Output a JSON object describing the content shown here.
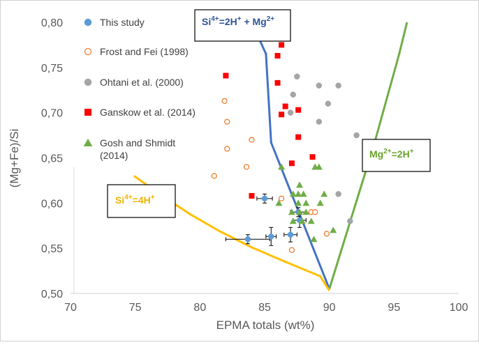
{
  "chart_data": {
    "type": "scatter",
    "xlabel": "EPMA totals (wt%)",
    "ylabel": "(Mg+Fe)/Si",
    "xlim": [
      70,
      100
    ],
    "ylim": [
      0.5,
      0.8
    ],
    "x_ticks": [
      "70",
      "75",
      "80",
      "85",
      "90",
      "95",
      "100"
    ],
    "y_ticks": [
      "0,50",
      "0,55",
      "0,60",
      "0,65",
      "0,70",
      "0,75",
      "0,80"
    ],
    "series": [
      {
        "name": "This study",
        "color": "#5b9bd5",
        "marker": "circle-filled",
        "points": [
          {
            "x": 83.7,
            "y": 0.56,
            "xerr": 1.7,
            "yerr": 0.005
          },
          {
            "x": 85.5,
            "y": 0.563,
            "xerr": 0.4,
            "yerr": 0.01
          },
          {
            "x": 87.0,
            "y": 0.565,
            "xerr": 0.5,
            "yerr": 0.008
          },
          {
            "x": 85.0,
            "y": 0.605,
            "xerr": 0.6,
            "yerr": 0.005
          },
          {
            "x": 87.6,
            "y": 0.59,
            "xerr": 0.6,
            "yerr": 0.005
          },
          {
            "x": 87.7,
            "y": 0.581,
            "xerr": 0.5,
            "yerr": 0.008
          }
        ]
      },
      {
        "name": "Frost and Fei (1998)",
        "color": "#ed7d31",
        "marker": "circle-open",
        "points": [
          {
            "x": 81.9,
            "y": 0.713
          },
          {
            "x": 82.1,
            "y": 0.69
          },
          {
            "x": 82.1,
            "y": 0.66
          },
          {
            "x": 84.0,
            "y": 0.67
          },
          {
            "x": 83.6,
            "y": 0.64
          },
          {
            "x": 81.1,
            "y": 0.63
          },
          {
            "x": 86.3,
            "y": 0.605
          },
          {
            "x": 88.6,
            "y": 0.59
          },
          {
            "x": 88.9,
            "y": 0.59
          },
          {
            "x": 87.1,
            "y": 0.548
          },
          {
            "x": 89.8,
            "y": 0.566
          }
        ]
      },
      {
        "name": "Ohtani et al. (2000)",
        "color": "#a5a5a5",
        "marker": "circle-filled",
        "points": [
          {
            "x": 87.5,
            "y": 0.74
          },
          {
            "x": 89.2,
            "y": 0.73
          },
          {
            "x": 90.7,
            "y": 0.73
          },
          {
            "x": 87.2,
            "y": 0.72
          },
          {
            "x": 89.9,
            "y": 0.71
          },
          {
            "x": 87.0,
            "y": 0.7
          },
          {
            "x": 89.2,
            "y": 0.69
          },
          {
            "x": 92.1,
            "y": 0.675
          },
          {
            "x": 90.7,
            "y": 0.61
          },
          {
            "x": 91.6,
            "y": 0.58
          }
        ]
      },
      {
        "name": "Ganskow et al. (2014)",
        "color": "#ff0000",
        "marker": "square",
        "points": [
          {
            "x": 86.3,
            "y": 0.775
          },
          {
            "x": 86.0,
            "y": 0.763
          },
          {
            "x": 82.0,
            "y": 0.741
          },
          {
            "x": 86.0,
            "y": 0.733
          },
          {
            "x": 86.6,
            "y": 0.707
          },
          {
            "x": 87.6,
            "y": 0.703
          },
          {
            "x": 86.3,
            "y": 0.698
          },
          {
            "x": 87.6,
            "y": 0.673
          },
          {
            "x": 88.7,
            "y": 0.651
          },
          {
            "x": 87.1,
            "y": 0.644
          },
          {
            "x": 84.0,
            "y": 0.608
          }
        ]
      },
      {
        "name": "Gosh and Shmidt (2014)",
        "color": "#70ad47",
        "marker": "triangle",
        "points": [
          {
            "x": 86.3,
            "y": 0.64
          },
          {
            "x": 88.9,
            "y": 0.64
          },
          {
            "x": 89.2,
            "y": 0.64
          },
          {
            "x": 87.7,
            "y": 0.62
          },
          {
            "x": 87.2,
            "y": 0.61
          },
          {
            "x": 87.6,
            "y": 0.61
          },
          {
            "x": 88.0,
            "y": 0.61
          },
          {
            "x": 89.6,
            "y": 0.61
          },
          {
            "x": 86.1,
            "y": 0.6
          },
          {
            "x": 87.6,
            "y": 0.6
          },
          {
            "x": 88.2,
            "y": 0.6
          },
          {
            "x": 89.3,
            "y": 0.6
          },
          {
            "x": 87.1,
            "y": 0.59
          },
          {
            "x": 87.7,
            "y": 0.59
          },
          {
            "x": 88.2,
            "y": 0.59
          },
          {
            "x": 87.2,
            "y": 0.58
          },
          {
            "x": 87.9,
            "y": 0.58
          },
          {
            "x": 88.6,
            "y": 0.58
          },
          {
            "x": 90.3,
            "y": 0.57
          },
          {
            "x": 88.8,
            "y": 0.56
          }
        ]
      }
    ],
    "lines": [
      {
        "name": "Si4+=2H+ + Mg2+",
        "color": "#4472c4",
        "points": [
          {
            "x": 84.0,
            "y": 0.8
          },
          {
            "x": 85.1,
            "y": 0.765
          },
          {
            "x": 85.5,
            "y": 0.667
          },
          {
            "x": 90.0,
            "y": 0.505
          }
        ]
      },
      {
        "name": "Mg2+=2H+",
        "color": "#70ad47",
        "points": [
          {
            "x": 90.0,
            "y": 0.505
          },
          {
            "x": 93.5,
            "y": 0.667
          },
          {
            "x": 95.4,
            "y": 0.765
          },
          {
            "x": 96.0,
            "y": 0.8
          }
        ]
      },
      {
        "name": "Si4+=4H+",
        "color": "#ffc000",
        "points": [
          {
            "x": 74.9,
            "y": 0.63
          },
          {
            "x": 77.0,
            "y": 0.609
          },
          {
            "x": 79.2,
            "y": 0.588
          },
          {
            "x": 81.5,
            "y": 0.569
          },
          {
            "x": 84.0,
            "y": 0.551
          },
          {
            "x": 86.6,
            "y": 0.535
          },
          {
            "x": 89.3,
            "y": 0.519
          },
          {
            "x": 90.0,
            "y": 0.503
          }
        ]
      }
    ],
    "annotations": [
      {
        "name": "si-2h-mg",
        "label_prefix": "Si",
        "label_sup1": "4+",
        "label_mid": "=2H",
        "label_sup2": "+",
        "label_mid2": " + Mg",
        "label_sup3": "2+"
      },
      {
        "name": "mg-2h",
        "label_prefix": "Mg",
        "label_sup1": "2+",
        "label_mid": "=2H",
        "label_sup2": "+"
      },
      {
        "name": "si-4h",
        "label_prefix": "Si",
        "label_sup1": "4+",
        "label_mid": "=4H",
        "label_sup2": "+"
      }
    ],
    "legend_position": "top-left"
  }
}
